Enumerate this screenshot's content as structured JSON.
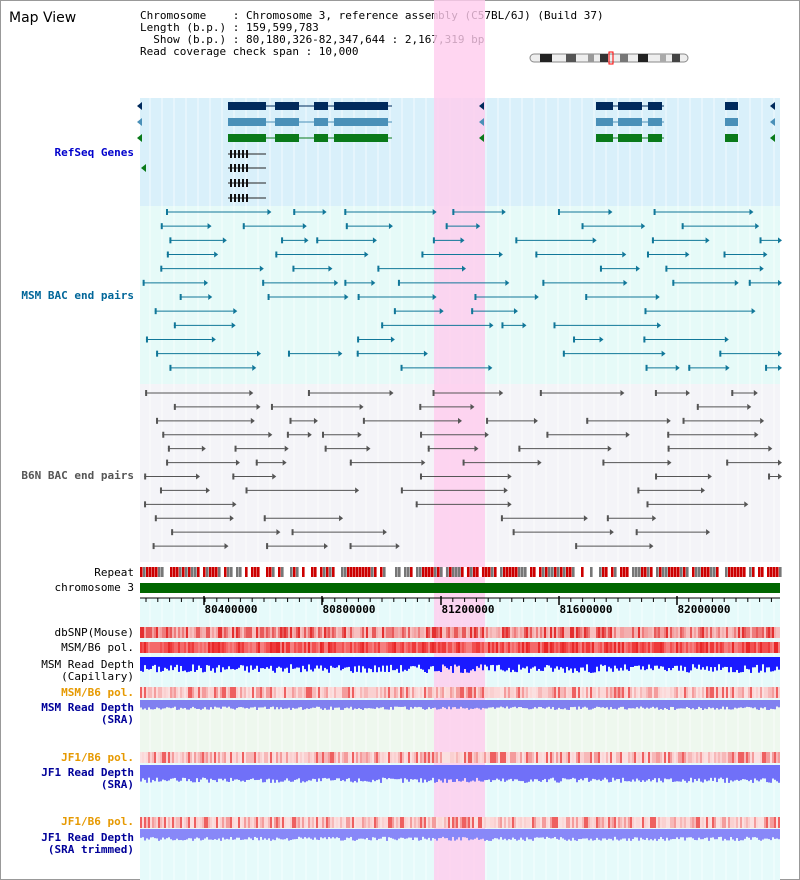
{
  "title": "Map View",
  "info": {
    "chromosome": "Chromosome    : Chromosome 3, reference assembly (C57BL/6J) (Build 37)",
    "length": "Length (b.p.) : 159,599,783",
    "show": "  Show (b.p.) : 80,180,326-82,347,644 : 2,167,319 bp",
    "span": "Read coverage check span : 10,000"
  },
  "tracks": {
    "refseq": "RefSeq Genes",
    "msm_bac": "MSM BAC end pairs",
    "b6n_bac": "B6N BAC end pairs",
    "repeat": "Repeat",
    "chromosome": "chromosome 3",
    "dbsnp": "dbSNP(Mouse)",
    "msm_b6_pol_1": "MSM/B6 pol.",
    "msm_read_depth_cap_1": "MSM Read Depth",
    "msm_read_depth_cap_2": "(Capillary)",
    "msm_b6_pol_2": "MSM/B6 pol.",
    "msm_read_depth_sra_1": "MSM Read Depth",
    "msm_read_depth_sra_2": "(SRA)",
    "jf1_b6_pol_1": "JF1/B6 pol.",
    "jf1_read_depth_sra_1": "JF1 Read Depth",
    "jf1_read_depth_sra_2": "(SRA)",
    "jf1_b6_pol_2": "JF1/B6 pol.",
    "jf1_read_depth_trim_1": "JF1 Read Depth",
    "jf1_read_depth_trim_2": "(SRA trimmed)"
  },
  "axis": {
    "ticks": [
      "80400000",
      "80800000",
      "81200000",
      "81600000",
      "82000000"
    ]
  },
  "colors": {
    "refseq_label": "#0000cc",
    "msm_bac_label": "#006699",
    "b6n_bac_label": "#555555",
    "pol_label_orange": "#e69900",
    "sra_label": "#000099",
    "highlight": "#ffccee",
    "chromosome_bar": "#006600"
  }
}
